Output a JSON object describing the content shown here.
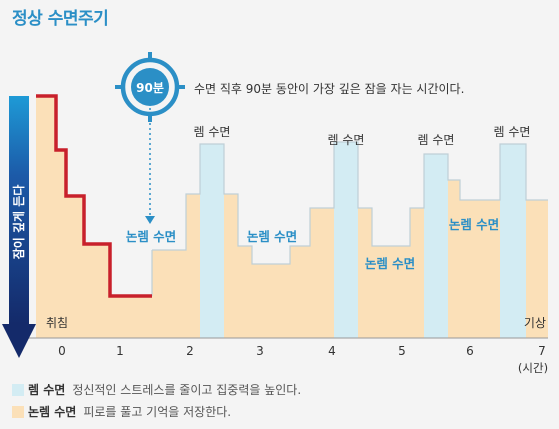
{
  "title": "정상 수면주기",
  "badge": "90분",
  "annotation": "수면 직후 90분 동안이 가장 깊은 잠을 자는 시간이다.",
  "yaxis_label": "잠이 깊게 든다",
  "start_label": "취침",
  "end_label": "기상",
  "x_ticks": [
    "0",
    "1",
    "2",
    "3",
    "4",
    "5",
    "6",
    "7"
  ],
  "x_unit": "(시간)",
  "rem_label": "렘 수면",
  "nrem_label": "논렘 수면",
  "legend": {
    "rem_name": "렘 수면",
    "rem_desc": "정신적인 스트레스를 줄이고 집중력을 높인다.",
    "nrem_name": "논렘 수면",
    "nrem_desc": "피로를 풀고 기억을 저장한다."
  },
  "colors": {
    "rem": "#d3ecf3",
    "nrem": "#fbe0b8",
    "title": "#2b8fc6",
    "deep_line": "#c8202b",
    "axis_arrow": "#1e3e7a"
  }
}
